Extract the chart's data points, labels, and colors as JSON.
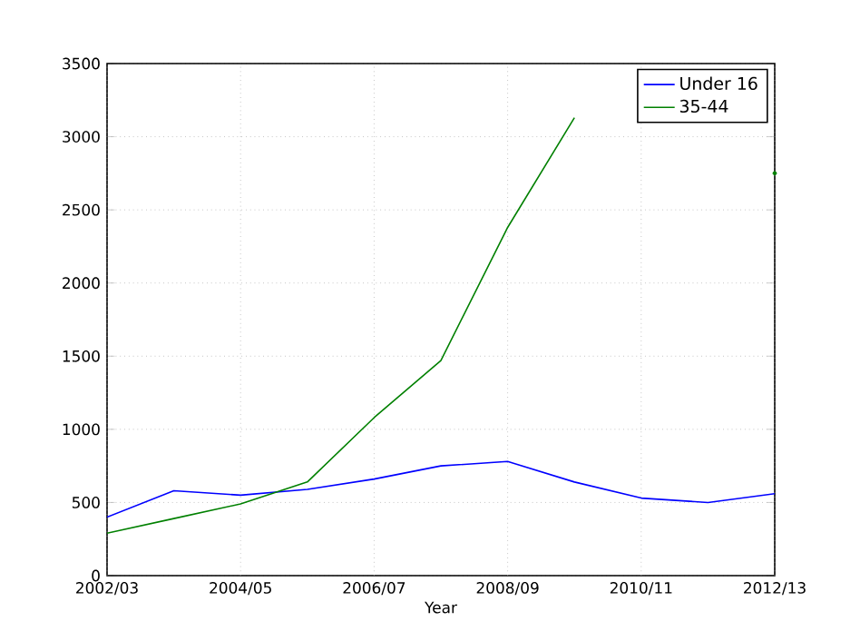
{
  "chart_data": {
    "type": "line",
    "xlabel": "Year",
    "categories": [
      "2002/03",
      null,
      "2004/05",
      null,
      "2006/07",
      null,
      "2008/09",
      null,
      "2010/11",
      null,
      "2012/13"
    ],
    "series": [
      {
        "name": "Under 16",
        "color": "#0000ff",
        "values": [
          400,
          580,
          550,
          590,
          660,
          750,
          780,
          640,
          530,
          500,
          560
        ]
      },
      {
        "name": "35-44",
        "color": "#008000",
        "values": [
          290,
          390,
          490,
          640,
          1080,
          1470,
          2380,
          3130,
          null,
          null,
          2750
        ]
      }
    ],
    "ylim": [
      0,
      3500
    ],
    "yticks": [
      0,
      500,
      1000,
      1500,
      2000,
      2500,
      3000,
      3500
    ],
    "grid": true,
    "legend": "top right",
    "marker": "none",
    "line_style": "solid"
  }
}
